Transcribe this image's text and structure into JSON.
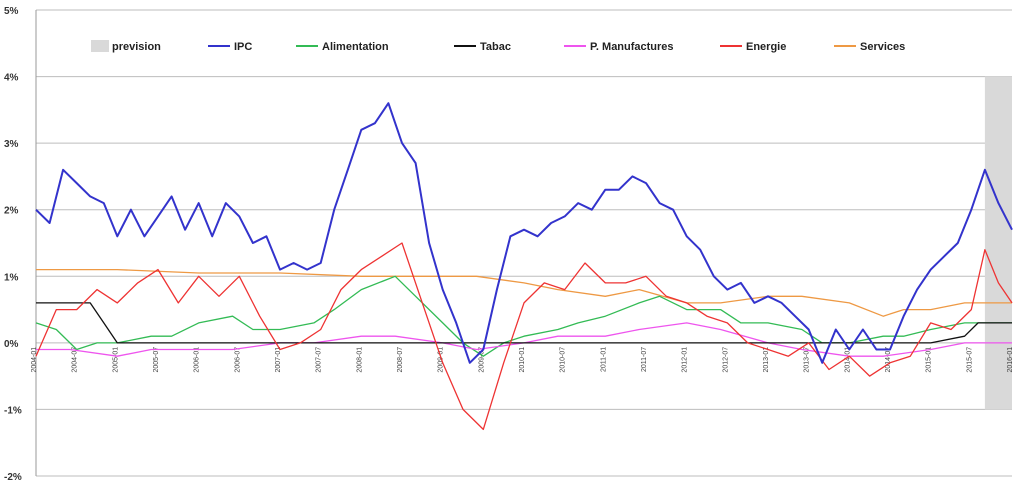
{
  "chart_data": {
    "type": "line",
    "title": "",
    "xlabel": "",
    "ylabel": "",
    "ylim": [
      -2,
      5
    ],
    "y_ticks": [
      "5%",
      "4%",
      "3%",
      "2%",
      "1%",
      "0%",
      "-1%",
      "-2%"
    ],
    "x_start": "2004-01",
    "x_end": "2016-01",
    "x_ticks": [
      "2004-01",
      "2004-07",
      "2005-01",
      "2005-07",
      "2006-01",
      "2006-07",
      "2007-01",
      "2007-07",
      "2008-01",
      "2008-07",
      "2009-01",
      "2009-07",
      "2010-01",
      "2010-07",
      "2011-01",
      "2011-07",
      "2012-01",
      "2012-07",
      "2013-01",
      "2013-07",
      "2014-01",
      "2014-07",
      "2015-01",
      "2015-07",
      "2016-01"
    ],
    "grid": true,
    "legend_position": "top",
    "forecast_band": {
      "name": "prevision",
      "from": "2015-09",
      "to": "2016-01",
      "color": "#d9d9d9"
    },
    "series": [
      {
        "name": "IPC",
        "color": "#3333cc",
        "width": 2,
        "points": [
          [
            "2004-01",
            2.0
          ],
          [
            "2004-03",
            1.8
          ],
          [
            "2004-05",
            2.6
          ],
          [
            "2004-07",
            2.4
          ],
          [
            "2004-09",
            2.2
          ],
          [
            "2004-11",
            2.1
          ],
          [
            "2005-01",
            1.6
          ],
          [
            "2005-03",
            2.0
          ],
          [
            "2005-05",
            1.6
          ],
          [
            "2005-07",
            1.9
          ],
          [
            "2005-09",
            2.2
          ],
          [
            "2005-11",
            1.7
          ],
          [
            "2006-01",
            2.1
          ],
          [
            "2006-03",
            1.6
          ],
          [
            "2006-05",
            2.1
          ],
          [
            "2006-07",
            1.9
          ],
          [
            "2006-09",
            1.5
          ],
          [
            "2006-11",
            1.6
          ],
          [
            "2007-01",
            1.1
          ],
          [
            "2007-03",
            1.2
          ],
          [
            "2007-05",
            1.1
          ],
          [
            "2007-07",
            1.2
          ],
          [
            "2007-09",
            2.0
          ],
          [
            "2007-11",
            2.6
          ],
          [
            "2008-01",
            3.2
          ],
          [
            "2008-03",
            3.3
          ],
          [
            "2008-05",
            3.6
          ],
          [
            "2008-07",
            3.0
          ],
          [
            "2008-09",
            2.7
          ],
          [
            "2008-11",
            1.5
          ],
          [
            "2009-01",
            0.8
          ],
          [
            "2009-03",
            0.3
          ],
          [
            "2009-05",
            -0.3
          ],
          [
            "2009-07",
            -0.1
          ],
          [
            "2009-09",
            0.8
          ],
          [
            "2009-11",
            1.6
          ],
          [
            "2010-01",
            1.7
          ],
          [
            "2010-03",
            1.6
          ],
          [
            "2010-05",
            1.8
          ],
          [
            "2010-07",
            1.9
          ],
          [
            "2010-09",
            2.1
          ],
          [
            "2010-11",
            2.0
          ],
          [
            "2011-01",
            2.3
          ],
          [
            "2011-03",
            2.3
          ],
          [
            "2011-05",
            2.5
          ],
          [
            "2011-07",
            2.4
          ],
          [
            "2011-09",
            2.1
          ],
          [
            "2011-11",
            2.0
          ],
          [
            "2012-01",
            1.6
          ],
          [
            "2012-03",
            1.4
          ],
          [
            "2012-05",
            1.0
          ],
          [
            "2012-07",
            0.8
          ],
          [
            "2012-09",
            0.9
          ],
          [
            "2012-11",
            0.6
          ],
          [
            "2013-01",
            0.7
          ],
          [
            "2013-03",
            0.6
          ],
          [
            "2013-05",
            0.4
          ],
          [
            "2013-07",
            0.2
          ],
          [
            "2013-09",
            -0.3
          ],
          [
            "2013-11",
            0.2
          ],
          [
            "2014-01",
            -0.1
          ],
          [
            "2014-03",
            0.2
          ],
          [
            "2014-05",
            -0.1
          ],
          [
            "2014-07",
            -0.1
          ],
          [
            "2014-09",
            0.4
          ],
          [
            "2014-11",
            0.8
          ],
          [
            "2015-01",
            1.1
          ],
          [
            "2015-03",
            1.3
          ],
          [
            "2015-05",
            1.5
          ],
          [
            "2015-07",
            2.0
          ],
          [
            "2015-09",
            2.6
          ],
          [
            "2015-11",
            2.1
          ],
          [
            "2016-01",
            1.7
          ]
        ]
      },
      {
        "name": "Alimentation",
        "color": "#33bb55",
        "width": 1.3,
        "points": [
          [
            "2004-01",
            0.3
          ],
          [
            "2004-04",
            0.2
          ],
          [
            "2004-07",
            -0.1
          ],
          [
            "2004-10",
            0.0
          ],
          [
            "2005-01",
            0.0
          ],
          [
            "2005-06",
            0.1
          ],
          [
            "2005-09",
            0.1
          ],
          [
            "2006-01",
            0.3
          ],
          [
            "2006-06",
            0.4
          ],
          [
            "2006-09",
            0.2
          ],
          [
            "2007-01",
            0.2
          ],
          [
            "2007-06",
            0.3
          ],
          [
            "2007-09",
            0.5
          ],
          [
            "2008-01",
            0.8
          ],
          [
            "2008-06",
            1.0
          ],
          [
            "2008-09",
            0.7
          ],
          [
            "2009-01",
            0.3
          ],
          [
            "2009-04",
            0.0
          ],
          [
            "2009-07",
            -0.2
          ],
          [
            "2009-10",
            0.0
          ],
          [
            "2010-01",
            0.1
          ],
          [
            "2010-06",
            0.2
          ],
          [
            "2010-09",
            0.3
          ],
          [
            "2011-01",
            0.4
          ],
          [
            "2011-06",
            0.6
          ],
          [
            "2011-09",
            0.7
          ],
          [
            "2012-01",
            0.5
          ],
          [
            "2012-06",
            0.5
          ],
          [
            "2012-09",
            0.3
          ],
          [
            "2013-01",
            0.3
          ],
          [
            "2013-06",
            0.2
          ],
          [
            "2013-09",
            0.0
          ],
          [
            "2014-01",
            0.0
          ],
          [
            "2014-06",
            0.1
          ],
          [
            "2014-09",
            0.1
          ],
          [
            "2015-01",
            0.2
          ],
          [
            "2015-06",
            0.3
          ],
          [
            "2015-09",
            0.3
          ],
          [
            "2016-01",
            0.3
          ]
        ]
      },
      {
        "name": "Tabac",
        "color": "#111111",
        "width": 1.3,
        "points": [
          [
            "2004-01",
            0.6
          ],
          [
            "2004-09",
            0.6
          ],
          [
            "2004-11",
            0.3
          ],
          [
            "2005-01",
            0.0
          ],
          [
            "2007-01",
            0.0
          ],
          [
            "2010-01",
            0.0
          ],
          [
            "2012-01",
            0.0
          ],
          [
            "2014-01",
            0.0
          ],
          [
            "2015-01",
            0.0
          ],
          [
            "2015-06",
            0.1
          ],
          [
            "2015-08",
            0.3
          ],
          [
            "2016-01",
            0.3
          ]
        ]
      },
      {
        "name": "P. Manufactures",
        "color": "#ee55ee",
        "width": 1.3,
        "points": [
          [
            "2004-01",
            -0.1
          ],
          [
            "2004-06",
            -0.1
          ],
          [
            "2005-01",
            -0.2
          ],
          [
            "2005-06",
            -0.1
          ],
          [
            "2006-01",
            -0.1
          ],
          [
            "2006-06",
            -0.1
          ],
          [
            "2007-01",
            0.0
          ],
          [
            "2007-06",
            0.0
          ],
          [
            "2008-01",
            0.1
          ],
          [
            "2008-06",
            0.1
          ],
          [
            "2009-01",
            0.0
          ],
          [
            "2009-06",
            -0.1
          ],
          [
            "2010-01",
            0.0
          ],
          [
            "2010-06",
            0.1
          ],
          [
            "2011-01",
            0.1
          ],
          [
            "2011-06",
            0.2
          ],
          [
            "2012-01",
            0.3
          ],
          [
            "2012-06",
            0.2
          ],
          [
            "2013-01",
            0.0
          ],
          [
            "2013-06",
            -0.1
          ],
          [
            "2014-01",
            -0.2
          ],
          [
            "2014-06",
            -0.2
          ],
          [
            "2015-01",
            -0.1
          ],
          [
            "2015-06",
            0.0
          ],
          [
            "2016-01",
            0.0
          ]
        ]
      },
      {
        "name": "Energie",
        "color": "#ee3333",
        "width": 1.3,
        "points": [
          [
            "2004-01",
            -0.2
          ],
          [
            "2004-04",
            0.5
          ],
          [
            "2004-07",
            0.5
          ],
          [
            "2004-10",
            0.8
          ],
          [
            "2005-01",
            0.6
          ],
          [
            "2005-04",
            0.9
          ],
          [
            "2005-07",
            1.1
          ],
          [
            "2005-10",
            0.6
          ],
          [
            "2006-01",
            1.0
          ],
          [
            "2006-04",
            0.7
          ],
          [
            "2006-07",
            1.0
          ],
          [
            "2006-10",
            0.4
          ],
          [
            "2007-01",
            -0.1
          ],
          [
            "2007-04",
            0.0
          ],
          [
            "2007-07",
            0.2
          ],
          [
            "2007-10",
            0.8
          ],
          [
            "2008-01",
            1.1
          ],
          [
            "2008-04",
            1.3
          ],
          [
            "2008-07",
            1.5
          ],
          [
            "2008-10",
            0.6
          ],
          [
            "2009-01",
            -0.3
          ],
          [
            "2009-04",
            -1.0
          ],
          [
            "2009-07",
            -1.3
          ],
          [
            "2009-10",
            -0.3
          ],
          [
            "2010-01",
            0.6
          ],
          [
            "2010-04",
            0.9
          ],
          [
            "2010-07",
            0.8
          ],
          [
            "2010-10",
            1.2
          ],
          [
            "2011-01",
            0.9
          ],
          [
            "2011-04",
            0.9
          ],
          [
            "2011-07",
            1.0
          ],
          [
            "2011-10",
            0.7
          ],
          [
            "2012-01",
            0.6
          ],
          [
            "2012-04",
            0.4
          ],
          [
            "2012-07",
            0.3
          ],
          [
            "2012-10",
            0.0
          ],
          [
            "2013-01",
            -0.1
          ],
          [
            "2013-04",
            -0.2
          ],
          [
            "2013-07",
            0.0
          ],
          [
            "2013-10",
            -0.4
          ],
          [
            "2014-01",
            -0.2
          ],
          [
            "2014-04",
            -0.5
          ],
          [
            "2014-07",
            -0.3
          ],
          [
            "2014-10",
            -0.2
          ],
          [
            "2015-01",
            0.3
          ],
          [
            "2015-04",
            0.2
          ],
          [
            "2015-07",
            0.5
          ],
          [
            "2015-09",
            1.4
          ],
          [
            "2015-11",
            0.9
          ],
          [
            "2016-01",
            0.6
          ]
        ]
      },
      {
        "name": "Services",
        "color": "#ee9944",
        "width": 1.3,
        "points": [
          [
            "2004-01",
            1.1
          ],
          [
            "2005-01",
            1.1
          ],
          [
            "2006-01",
            1.05
          ],
          [
            "2007-01",
            1.05
          ],
          [
            "2008-01",
            1.0
          ],
          [
            "2008-06",
            1.0
          ],
          [
            "2009-01",
            1.0
          ],
          [
            "2009-06",
            1.0
          ],
          [
            "2010-01",
            0.9
          ],
          [
            "2010-06",
            0.8
          ],
          [
            "2011-01",
            0.7
          ],
          [
            "2011-06",
            0.8
          ],
          [
            "2012-01",
            0.6
          ],
          [
            "2012-06",
            0.6
          ],
          [
            "2013-01",
            0.7
          ],
          [
            "2013-06",
            0.7
          ],
          [
            "2014-01",
            0.6
          ],
          [
            "2014-06",
            0.4
          ],
          [
            "2014-09",
            0.5
          ],
          [
            "2015-01",
            0.5
          ],
          [
            "2015-06",
            0.6
          ],
          [
            "2015-09",
            0.6
          ],
          [
            "2016-01",
            0.6
          ]
        ]
      }
    ]
  }
}
